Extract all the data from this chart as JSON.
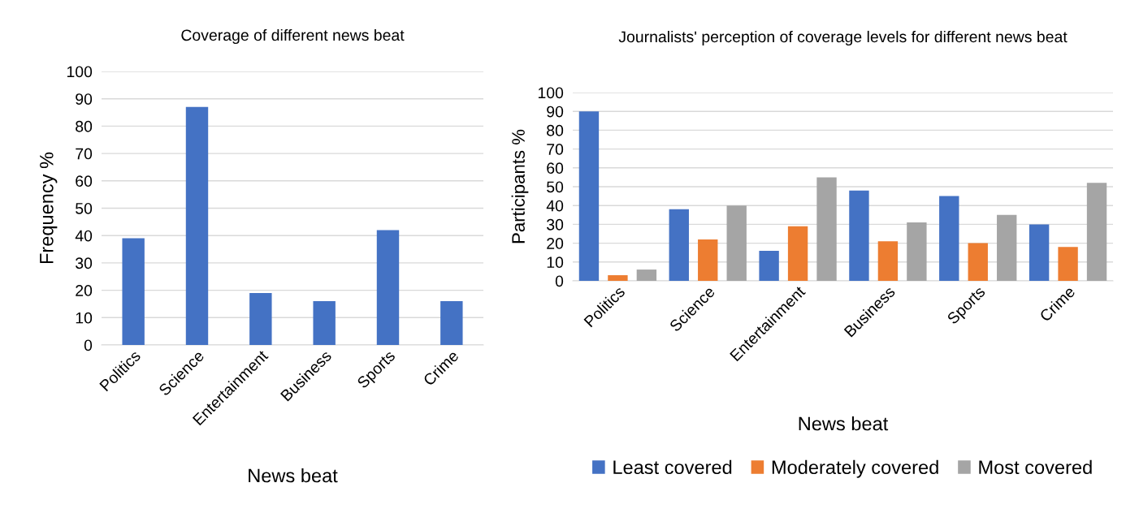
{
  "chart_data": [
    {
      "type": "bar",
      "title": "Coverage of different news beat",
      "xlabel": "News beat",
      "ylabel": "Frequency %",
      "categories": [
        "Politics",
        "Science",
        "Entertainment",
        "Business",
        "Sports",
        "Crime"
      ],
      "series": [
        {
          "color": "#4472c4",
          "values": [
            39,
            87,
            19,
            16,
            42,
            16
          ]
        }
      ],
      "ylim": [
        0,
        100
      ],
      "yticks": [
        0,
        10,
        20,
        30,
        40,
        50,
        60,
        70,
        80,
        90,
        100
      ],
      "grid": "y",
      "legend": false
    },
    {
      "type": "bar",
      "title": "Journalists' perception of coverage levels for different news beat",
      "xlabel": "News beat",
      "ylabel": "Participants %",
      "categories": [
        "Politics",
        "Science",
        "Entertainment",
        "Business",
        "Sports",
        "Crime"
      ],
      "series": [
        {
          "name": "Least covered",
          "color": "#4472c4",
          "values": [
            90,
            38,
            16,
            48,
            45,
            30
          ]
        },
        {
          "name": "Moderately covered",
          "color": "#ed7d31",
          "values": [
            3,
            22,
            29,
            21,
            20,
            18
          ]
        },
        {
          "name": "Most covered",
          "color": "#a5a5a5",
          "values": [
            6,
            40,
            55,
            31,
            35,
            52
          ]
        }
      ],
      "ylim": [
        0,
        100
      ],
      "yticks": [
        0,
        10,
        20,
        30,
        40,
        50,
        60,
        70,
        80,
        90,
        100
      ],
      "grid": "y",
      "legend": "bottom"
    }
  ]
}
